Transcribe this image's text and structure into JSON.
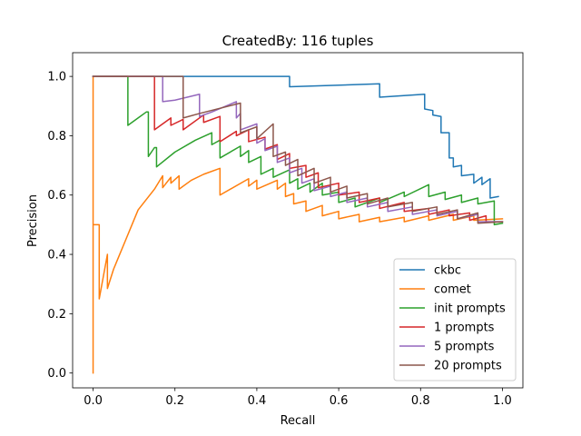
{
  "chart_data": {
    "type": "line",
    "title": "CreatedBy: 116 tuples",
    "xlabel": "Recall",
    "ylabel": "Precision",
    "xlim": [
      -0.05,
      1.05
    ],
    "ylim": [
      -0.05,
      1.08
    ],
    "xticks": [
      "0.0",
      "0.2",
      "0.4",
      "0.6",
      "0.8",
      "1.0"
    ],
    "yticks": [
      "0.0",
      "0.2",
      "0.4",
      "0.6",
      "0.8",
      "1.0"
    ],
    "grid": false,
    "legend_position": "lower-right",
    "series": [
      {
        "name": "ckbc",
        "color": "#1f77b4",
        "points": [
          [
            0.0,
            1.0
          ],
          [
            0.48,
            1.0
          ],
          [
            0.48,
            0.965
          ],
          [
            0.7,
            0.975
          ],
          [
            0.7,
            0.93
          ],
          [
            0.81,
            0.94
          ],
          [
            0.81,
            0.89
          ],
          [
            0.83,
            0.885
          ],
          [
            0.83,
            0.87
          ],
          [
            0.85,
            0.865
          ],
          [
            0.85,
            0.81
          ],
          [
            0.87,
            0.81
          ],
          [
            0.87,
            0.725
          ],
          [
            0.88,
            0.725
          ],
          [
            0.88,
            0.695
          ],
          [
            0.9,
            0.7
          ],
          [
            0.9,
            0.665
          ],
          [
            0.93,
            0.67
          ],
          [
            0.93,
            0.64
          ],
          [
            0.95,
            0.66
          ],
          [
            0.95,
            0.635
          ],
          [
            0.97,
            0.655
          ],
          [
            0.97,
            0.59
          ],
          [
            0.99,
            0.595
          ]
        ]
      },
      {
        "name": "comet",
        "color": "#ff7f0e",
        "points": [
          [
            0.0,
            0.0
          ],
          [
            0.0,
            1.0
          ],
          [
            0.0,
            0.5
          ],
          [
            0.015,
            0.5
          ],
          [
            0.015,
            0.25
          ],
          [
            0.035,
            0.4
          ],
          [
            0.035,
            0.285
          ],
          [
            0.05,
            0.35
          ],
          [
            0.08,
            0.45
          ],
          [
            0.11,
            0.55
          ],
          [
            0.15,
            0.62
          ],
          [
            0.17,
            0.665
          ],
          [
            0.17,
            0.625
          ],
          [
            0.19,
            0.66
          ],
          [
            0.19,
            0.64
          ],
          [
            0.21,
            0.665
          ],
          [
            0.21,
            0.62
          ],
          [
            0.24,
            0.65
          ],
          [
            0.27,
            0.67
          ],
          [
            0.31,
            0.69
          ],
          [
            0.31,
            0.6
          ],
          [
            0.38,
            0.655
          ],
          [
            0.38,
            0.63
          ],
          [
            0.4,
            0.65
          ],
          [
            0.4,
            0.62
          ],
          [
            0.45,
            0.65
          ],
          [
            0.45,
            0.62
          ],
          [
            0.47,
            0.64
          ],
          [
            0.47,
            0.595
          ],
          [
            0.49,
            0.605
          ],
          [
            0.49,
            0.57
          ],
          [
            0.52,
            0.58
          ],
          [
            0.52,
            0.545
          ],
          [
            0.56,
            0.565
          ],
          [
            0.56,
            0.53
          ],
          [
            0.6,
            0.545
          ],
          [
            0.6,
            0.52
          ],
          [
            0.65,
            0.535
          ],
          [
            0.65,
            0.51
          ],
          [
            0.7,
            0.525
          ],
          [
            0.7,
            0.51
          ],
          [
            0.76,
            0.525
          ],
          [
            0.76,
            0.51
          ],
          [
            0.82,
            0.53
          ],
          [
            0.82,
            0.515
          ],
          [
            0.88,
            0.535
          ],
          [
            0.88,
            0.515
          ],
          [
            0.93,
            0.53
          ],
          [
            0.93,
            0.515
          ],
          [
            1.0,
            0.52
          ]
        ]
      },
      {
        "name": "init prompts",
        "color": "#2ca02c",
        "points": [
          [
            0.0,
            1.0
          ],
          [
            0.085,
            1.0
          ],
          [
            0.085,
            0.835
          ],
          [
            0.13,
            0.88
          ],
          [
            0.135,
            0.88
          ],
          [
            0.135,
            0.73
          ],
          [
            0.15,
            0.76
          ],
          [
            0.155,
            0.76
          ],
          [
            0.155,
            0.695
          ],
          [
            0.2,
            0.745
          ],
          [
            0.25,
            0.785
          ],
          [
            0.29,
            0.81
          ],
          [
            0.29,
            0.77
          ],
          [
            0.31,
            0.785
          ],
          [
            0.31,
            0.725
          ],
          [
            0.36,
            0.765
          ],
          [
            0.36,
            0.73
          ],
          [
            0.38,
            0.75
          ],
          [
            0.38,
            0.71
          ],
          [
            0.41,
            0.73
          ],
          [
            0.41,
            0.67
          ],
          [
            0.44,
            0.69
          ],
          [
            0.44,
            0.66
          ],
          [
            0.48,
            0.685
          ],
          [
            0.48,
            0.64
          ],
          [
            0.5,
            0.655
          ],
          [
            0.5,
            0.62
          ],
          [
            0.53,
            0.64
          ],
          [
            0.53,
            0.61
          ],
          [
            0.56,
            0.64
          ],
          [
            0.56,
            0.6
          ],
          [
            0.6,
            0.61
          ],
          [
            0.6,
            0.575
          ],
          [
            0.64,
            0.59
          ],
          [
            0.64,
            0.56
          ],
          [
            0.7,
            0.59
          ],
          [
            0.7,
            0.575
          ],
          [
            0.76,
            0.61
          ],
          [
            0.76,
            0.595
          ],
          [
            0.82,
            0.635
          ],
          [
            0.82,
            0.595
          ],
          [
            0.86,
            0.61
          ],
          [
            0.86,
            0.585
          ],
          [
            0.9,
            0.6
          ],
          [
            0.9,
            0.575
          ],
          [
            0.94,
            0.59
          ],
          [
            0.94,
            0.57
          ],
          [
            0.98,
            0.58
          ],
          [
            0.98,
            0.5
          ],
          [
            1.0,
            0.505
          ]
        ]
      },
      {
        "name": "1 prompts",
        "color": "#d62728",
        "points": [
          [
            0.0,
            1.0
          ],
          [
            0.15,
            1.0
          ],
          [
            0.15,
            0.82
          ],
          [
            0.19,
            0.86
          ],
          [
            0.19,
            0.835
          ],
          [
            0.22,
            0.855
          ],
          [
            0.22,
            0.82
          ],
          [
            0.27,
            0.87
          ],
          [
            0.27,
            0.845
          ],
          [
            0.31,
            0.865
          ],
          [
            0.31,
            0.78
          ],
          [
            0.35,
            0.815
          ],
          [
            0.35,
            0.8
          ],
          [
            0.38,
            0.82
          ],
          [
            0.38,
            0.78
          ],
          [
            0.42,
            0.795
          ],
          [
            0.42,
            0.755
          ],
          [
            0.45,
            0.77
          ],
          [
            0.45,
            0.72
          ],
          [
            0.48,
            0.74
          ],
          [
            0.48,
            0.69
          ],
          [
            0.52,
            0.7
          ],
          [
            0.52,
            0.66
          ],
          [
            0.55,
            0.675
          ],
          [
            0.55,
            0.625
          ],
          [
            0.6,
            0.64
          ],
          [
            0.6,
            0.6
          ],
          [
            0.65,
            0.61
          ],
          [
            0.65,
            0.575
          ],
          [
            0.7,
            0.59
          ],
          [
            0.7,
            0.555
          ],
          [
            0.76,
            0.575
          ],
          [
            0.76,
            0.545
          ],
          [
            0.82,
            0.555
          ],
          [
            0.82,
            0.535
          ],
          [
            0.87,
            0.55
          ],
          [
            0.87,
            0.53
          ],
          [
            0.92,
            0.54
          ],
          [
            0.92,
            0.515
          ],
          [
            0.96,
            0.53
          ],
          [
            0.96,
            0.51
          ],
          [
            1.0,
            0.51
          ]
        ]
      },
      {
        "name": "5 prompts",
        "color": "#9467bd",
        "points": [
          [
            0.0,
            1.0
          ],
          [
            0.17,
            1.0
          ],
          [
            0.17,
            0.915
          ],
          [
            0.2,
            0.92
          ],
          [
            0.26,
            0.94
          ],
          [
            0.26,
            0.865
          ],
          [
            0.29,
            0.88
          ],
          [
            0.35,
            0.915
          ],
          [
            0.35,
            0.86
          ],
          [
            0.36,
            0.875
          ],
          [
            0.36,
            0.82
          ],
          [
            0.4,
            0.84
          ],
          [
            0.4,
            0.775
          ],
          [
            0.42,
            0.79
          ],
          [
            0.42,
            0.75
          ],
          [
            0.45,
            0.765
          ],
          [
            0.45,
            0.71
          ],
          [
            0.48,
            0.725
          ],
          [
            0.48,
            0.675
          ],
          [
            0.51,
            0.69
          ],
          [
            0.51,
            0.64
          ],
          [
            0.54,
            0.655
          ],
          [
            0.54,
            0.615
          ],
          [
            0.58,
            0.63
          ],
          [
            0.58,
            0.595
          ],
          [
            0.62,
            0.61
          ],
          [
            0.62,
            0.575
          ],
          [
            0.67,
            0.59
          ],
          [
            0.67,
            0.56
          ],
          [
            0.72,
            0.575
          ],
          [
            0.72,
            0.545
          ],
          [
            0.78,
            0.56
          ],
          [
            0.78,
            0.535
          ],
          [
            0.84,
            0.55
          ],
          [
            0.84,
            0.53
          ],
          [
            0.89,
            0.545
          ],
          [
            0.89,
            0.52
          ],
          [
            0.94,
            0.535
          ],
          [
            0.94,
            0.51
          ],
          [
            1.0,
            0.51
          ]
        ]
      },
      {
        "name": "20 prompts",
        "color": "#8c564b",
        "points": [
          [
            0.0,
            1.0
          ],
          [
            0.22,
            1.0
          ],
          [
            0.22,
            0.86
          ],
          [
            0.26,
            0.875
          ],
          [
            0.36,
            0.91
          ],
          [
            0.36,
            0.81
          ],
          [
            0.4,
            0.83
          ],
          [
            0.4,
            0.79
          ],
          [
            0.44,
            0.84
          ],
          [
            0.44,
            0.73
          ],
          [
            0.47,
            0.745
          ],
          [
            0.47,
            0.7
          ],
          [
            0.5,
            0.72
          ],
          [
            0.5,
            0.665
          ],
          [
            0.54,
            0.69
          ],
          [
            0.54,
            0.64
          ],
          [
            0.58,
            0.66
          ],
          [
            0.58,
            0.61
          ],
          [
            0.62,
            0.63
          ],
          [
            0.62,
            0.59
          ],
          [
            0.67,
            0.605
          ],
          [
            0.67,
            0.57
          ],
          [
            0.72,
            0.59
          ],
          [
            0.72,
            0.56
          ],
          [
            0.78,
            0.575
          ],
          [
            0.78,
            0.545
          ],
          [
            0.84,
            0.56
          ],
          [
            0.84,
            0.535
          ],
          [
            0.89,
            0.55
          ],
          [
            0.89,
            0.52
          ],
          [
            0.94,
            0.54
          ],
          [
            0.94,
            0.505
          ],
          [
            1.0,
            0.51
          ]
        ]
      }
    ]
  }
}
